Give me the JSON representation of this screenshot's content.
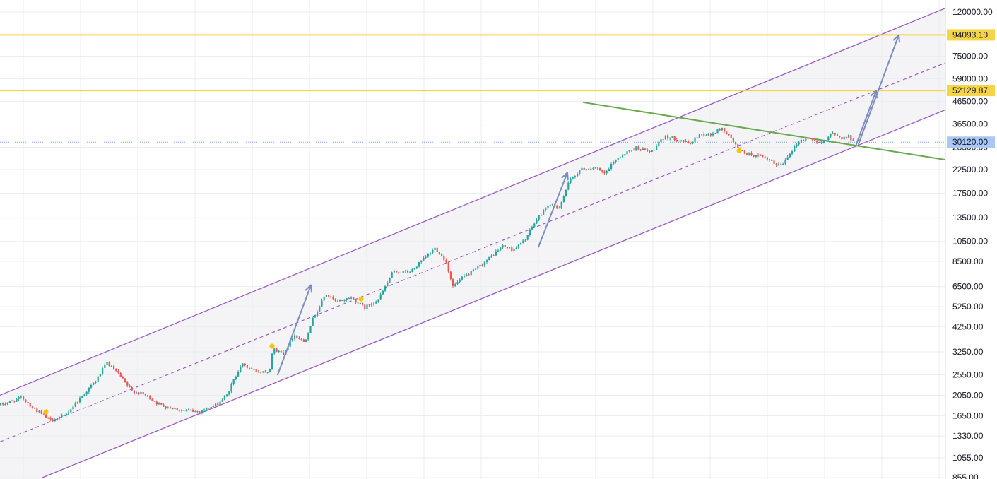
{
  "chart_data": {
    "type": "candlestick",
    "scale": "log",
    "grid": true,
    "legend": "none",
    "y_axis_position": "right",
    "ylim": [
      855,
      120000
    ],
    "y_ticks": [
      {
        "value": 120000,
        "label": "120000.00"
      },
      {
        "value": 75000,
        "label": "75000.00"
      },
      {
        "value": 59000,
        "label": "59000.00"
      },
      {
        "value": 46500,
        "label": "46500.00"
      },
      {
        "value": 36500,
        "label": "36500.00"
      },
      {
        "value": 28500,
        "label": "28500.00"
      },
      {
        "value": 22500,
        "label": "22500.00"
      },
      {
        "value": 17500,
        "label": "17500.00"
      },
      {
        "value": 13500,
        "label": "13500.00"
      },
      {
        "value": 10500,
        "label": "10500.00"
      },
      {
        "value": 8500,
        "label": "8500.00"
      },
      {
        "value": 6500,
        "label": "6500.00"
      },
      {
        "value": 5250,
        "label": "5250.00"
      },
      {
        "value": 4250,
        "label": "4250.00"
      },
      {
        "value": 3250,
        "label": "3250.00"
      },
      {
        "value": 2550,
        "label": "2550.00"
      },
      {
        "value": 2050,
        "label": "2050.00"
      },
      {
        "value": 1650,
        "label": "1650.00"
      },
      {
        "value": 1330,
        "label": "1330.00"
      },
      {
        "value": 1055,
        "label": "1055.00"
      },
      {
        "value": 855,
        "label": "855.00"
      }
    ],
    "horizontal_levels": [
      {
        "value": 94093.1,
        "label": "94093.10",
        "color": "#f5d547"
      },
      {
        "value": 52129.87,
        "label": "52129.87",
        "color": "#f5d547"
      }
    ],
    "current_price": {
      "value": 30120.0,
      "label": "30120.00",
      "color": "#a9c8f5"
    },
    "price_path": [
      [
        0,
        1850
      ],
      [
        30,
        2000
      ],
      [
        45,
        1800
      ],
      [
        70,
        1570
      ],
      [
        90,
        1640
      ],
      [
        110,
        1950
      ],
      [
        135,
        2400
      ],
      [
        150,
        2900
      ],
      [
        165,
        2600
      ],
      [
        185,
        2150
      ],
      [
        205,
        2050
      ],
      [
        225,
        1850
      ],
      [
        255,
        1750
      ],
      [
        280,
        1720
      ],
      [
        305,
        1850
      ],
      [
        320,
        2050
      ],
      [
        340,
        2850
      ],
      [
        360,
        2650
      ],
      [
        380,
        2650
      ],
      [
        385,
        3350
      ],
      [
        400,
        3200
      ],
      [
        415,
        3900
      ],
      [
        430,
        3600
      ],
      [
        440,
        4500
      ],
      [
        460,
        6000
      ],
      [
        475,
        5500
      ],
      [
        495,
        5800
      ],
      [
        515,
        5200
      ],
      [
        535,
        5700
      ],
      [
        555,
        7600
      ],
      [
        580,
        7600
      ],
      [
        600,
        8800
      ],
      [
        615,
        9800
      ],
      [
        630,
        8500
      ],
      [
        640,
        6500
      ],
      [
        655,
        7200
      ],
      [
        670,
        7700
      ],
      [
        690,
        8700
      ],
      [
        710,
        10000
      ],
      [
        725,
        9600
      ],
      [
        740,
        10500
      ],
      [
        760,
        13500
      ],
      [
        775,
        15500
      ],
      [
        790,
        15000
      ],
      [
        805,
        20000
      ],
      [
        820,
        22500
      ],
      [
        840,
        23000
      ],
      [
        855,
        21500
      ],
      [
        870,
        25000
      ],
      [
        885,
        27000
      ],
      [
        900,
        28500
      ],
      [
        920,
        27000
      ],
      [
        940,
        32000
      ],
      [
        960,
        31000
      ],
      [
        975,
        29500
      ],
      [
        990,
        33000
      ],
      [
        1005,
        32500
      ],
      [
        1020,
        35000
      ],
      [
        1035,
        31000
      ],
      [
        1045,
        27500
      ],
      [
        1060,
        26500
      ],
      [
        1080,
        25500
      ],
      [
        1095,
        24000
      ],
      [
        1105,
        23500
      ],
      [
        1115,
        26500
      ],
      [
        1130,
        30500
      ],
      [
        1145,
        31500
      ],
      [
        1160,
        29500
      ],
      [
        1175,
        33000
      ],
      [
        1190,
        31500
      ],
      [
        1200,
        32000
      ],
      [
        1208,
        30120
      ]
    ],
    "markers": [
      {
        "x": 65,
        "value": 1720
      },
      {
        "x": 385,
        "value": 3450
      },
      {
        "x": 511,
        "value": 5700
      },
      {
        "x": 1046,
        "value": 27500
      }
    ],
    "channel": {
      "upper": [
        [
          0,
          2050
        ],
        [
          1338,
          125000
        ]
      ],
      "middle": [
        [
          0,
          1250
        ],
        [
          1338,
          70000
        ]
      ],
      "lower": [
        [
          60,
          855
        ],
        [
          1338,
          42500
        ]
      ],
      "color": "#9c5cbf"
    },
    "trendline": {
      "points": [
        [
          825,
          46000
        ],
        [
          1338,
          25000
        ]
      ],
      "color": "#6aa84f"
    },
    "arrows": [
      {
        "from": [
          393,
          2550
        ],
        "to": [
          440,
          6600
        ]
      },
      {
        "from": [
          762,
          9900
        ],
        "to": [
          803,
          21800
        ]
      },
      {
        "from": [
          1212,
          29500
        ],
        "to": [
          1240,
          52000
        ]
      },
      {
        "from": [
          1215,
          29500
        ],
        "to": [
          1272,
          94000
        ]
      }
    ],
    "colors": {
      "up": "#26a69a",
      "down": "#ef5350",
      "marker": "#f7c600",
      "arrow": "#7a8cc0",
      "grid": "#e8ecf2",
      "channel_fill": "#f4f4f6",
      "level_badge": "#f5d547",
      "price_badge": "#a9c8f5"
    }
  }
}
